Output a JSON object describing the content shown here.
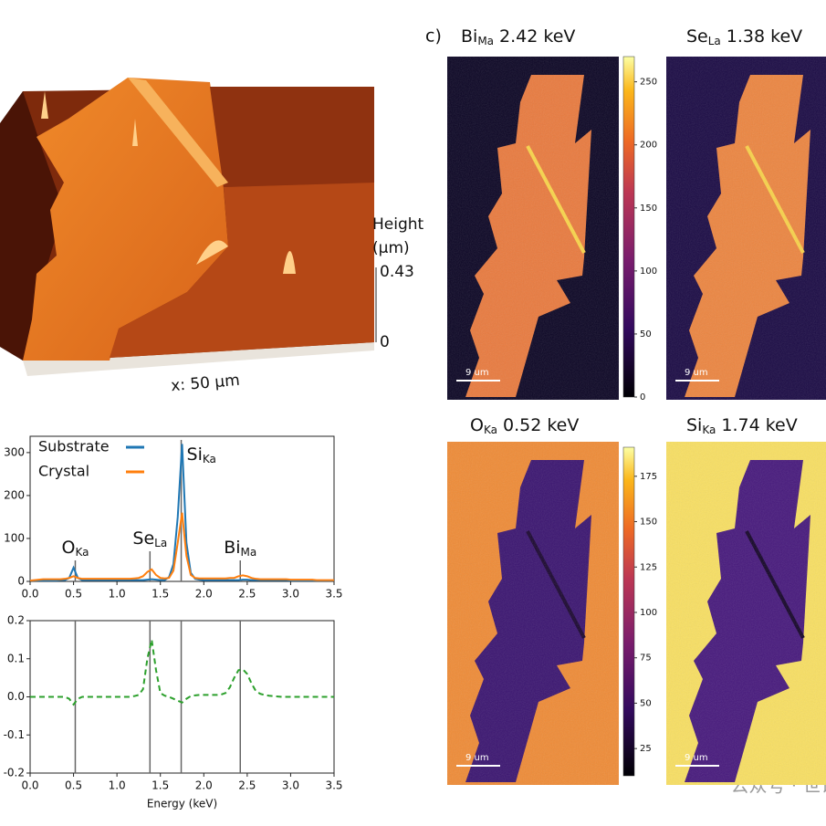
{
  "afm": {
    "height_label": "Height",
    "height_unit": "(μm)",
    "zticks": [
      0.43,
      0
    ],
    "x_label": "x: 50 μm"
  },
  "maps": {
    "panel_label": "c)",
    "panels": [
      {
        "element": "Bi",
        "line": "Ma",
        "energy": "2.42 keV",
        "scale_bar": "9 um"
      },
      {
        "element": "Se",
        "line": "La",
        "energy": "1.38 keV",
        "scale_bar": "9 um"
      },
      {
        "element": "O",
        "line": "Ka",
        "energy": "0.52 keV",
        "scale_bar": "9 um"
      },
      {
        "element": "Si",
        "line": "Ka",
        "energy": "1.74 keV",
        "scale_bar": "9 um"
      }
    ],
    "colorbars": [
      {
        "lim": [
          0,
          270
        ],
        "ticks": [
          0,
          50,
          100,
          150,
          200,
          250
        ]
      },
      {
        "lim": [
          10,
          191
        ],
        "ticks": [
          25,
          50,
          75,
          100,
          125,
          150,
          175
        ]
      }
    ]
  },
  "watermark": "公众号 · 世说新",
  "chart_data": [
    {
      "type": "line",
      "legend": "upper left",
      "x": [
        0,
        0.05,
        0.1,
        0.15,
        0.2,
        0.25,
        0.3,
        0.35,
        0.4,
        0.45,
        0.5,
        0.55,
        0.6,
        0.65,
        0.7,
        0.75,
        0.8,
        0.85,
        0.9,
        0.95,
        1,
        1.05,
        1.1,
        1.15,
        1.2,
        1.25,
        1.3,
        1.35,
        1.4,
        1.45,
        1.5,
        1.55,
        1.6,
        1.65,
        1.7,
        1.75,
        1.8,
        1.85,
        1.9,
        1.95,
        2,
        2.05,
        2.1,
        2.15,
        2.2,
        2.25,
        2.3,
        2.35,
        2.4,
        2.45,
        2.5,
        2.55,
        2.6,
        2.65,
        2.7,
        2.75,
        2.8,
        2.85,
        2.9,
        2.95,
        3,
        3.05,
        3.1,
        3.15,
        3.2,
        3.25,
        3.3,
        3.35,
        3.4,
        3.45,
        3.5
      ],
      "series": [
        {
          "name": "Substrate",
          "color": "#1f77b4",
          "values": [
            2,
            2,
            2,
            2,
            2,
            2,
            2,
            3,
            3,
            8,
            32,
            8,
            3,
            3,
            3,
            3,
            3,
            3,
            3,
            3,
            3,
            3,
            3,
            3,
            3,
            3,
            3,
            4,
            5,
            4,
            3,
            3,
            10,
            40,
            150,
            320,
            90,
            20,
            6,
            4,
            3,
            3,
            3,
            3,
            3,
            3,
            3,
            3,
            3,
            4,
            4,
            3,
            3,
            3,
            3,
            3,
            3,
            3,
            3,
            3,
            2,
            2,
            2,
            2,
            2,
            2,
            2,
            2,
            2,
            2,
            2
          ]
        },
        {
          "name": "Crystal",
          "color": "#ff7f0e",
          "values": [
            2,
            3,
            4,
            5,
            5,
            5,
            5,
            5,
            6,
            8,
            12,
            8,
            6,
            6,
            6,
            6,
            6,
            6,
            6,
            6,
            6,
            6,
            6,
            6,
            7,
            8,
            12,
            22,
            28,
            15,
            8,
            7,
            8,
            25,
            90,
            160,
            60,
            15,
            8,
            7,
            7,
            7,
            7,
            7,
            7,
            7,
            8,
            8,
            12,
            14,
            12,
            8,
            6,
            5,
            5,
            5,
            5,
            5,
            5,
            5,
            4,
            4,
            4,
            4,
            4,
            4,
            3,
            3,
            3,
            3,
            3
          ]
        }
      ],
      "xlim": [
        0,
        3.5
      ],
      "xticks": [
        {
          "value": 0,
          "label": "0.0"
        },
        {
          "value": 0.5,
          "label": "0.5"
        },
        {
          "value": 1,
          "label": "1.0"
        },
        {
          "value": 1.5,
          "label": "1.5"
        },
        {
          "value": 2,
          "label": "2.0"
        },
        {
          "value": 2.5,
          "label": "2.5"
        },
        {
          "value": 3,
          "label": "3.0"
        },
        {
          "value": 3.5,
          "label": "3.5"
        }
      ],
      "ylim": [
        0,
        338
      ],
      "yticks": [
        0,
        100,
        200,
        300
      ],
      "vlines": [
        0.52,
        1.38,
        1.74,
        2.42
      ],
      "annotations": [
        {
          "text": "O",
          "sub": "Ka"
        },
        {
          "text": "Se",
          "sub": "La"
        },
        {
          "text": "Si",
          "sub": "Ka"
        },
        {
          "text": "Bi",
          "sub": "Ma"
        }
      ]
    },
    {
      "type": "line",
      "xlabel": "Energy (keV)",
      "x": [
        0,
        0.05,
        0.1,
        0.15,
        0.2,
        0.25,
        0.3,
        0.35,
        0.4,
        0.45,
        0.5,
        0.55,
        0.6,
        0.65,
        0.7,
        0.75,
        0.8,
        0.85,
        0.9,
        0.95,
        1,
        1.05,
        1.1,
        1.15,
        1.2,
        1.25,
        1.3,
        1.35,
        1.4,
        1.45,
        1.5,
        1.55,
        1.6,
        1.65,
        1.7,
        1.75,
        1.8,
        1.85,
        1.9,
        1.95,
        2,
        2.05,
        2.1,
        2.15,
        2.2,
        2.25,
        2.3,
        2.35,
        2.4,
        2.45,
        2.5,
        2.55,
        2.6,
        2.65,
        2.7,
        2.75,
        2.8,
        2.85,
        2.9,
        2.95,
        3,
        3.05,
        3.1,
        3.15,
        3.2,
        3.25,
        3.3,
        3.35,
        3.4,
        3.45,
        3.5
      ],
      "series": [
        {
          "color": "#2ca02c",
          "linestyle": "dashed",
          "values": [
            0,
            0,
            0,
            0,
            0,
            0,
            0,
            0,
            0,
            -0.005,
            -0.02,
            -0.005,
            0,
            0,
            0,
            0,
            0,
            0,
            0,
            0,
            0,
            0,
            0,
            0,
            0.002,
            0.005,
            0.02,
            0.1,
            0.15,
            0.07,
            0.01,
            0.003,
            0,
            -0.005,
            -0.01,
            -0.015,
            -0.005,
            0.002,
            0.004,
            0.005,
            0.005,
            0.005,
            0.005,
            0.005,
            0.006,
            0.01,
            0.025,
            0.05,
            0.07,
            0.072,
            0.06,
            0.035,
            0.015,
            0.008,
            0.005,
            0.003,
            0.002,
            0.001,
            0,
            0,
            0,
            0,
            0,
            0,
            0,
            0,
            0,
            0,
            0,
            0,
            0
          ]
        }
      ],
      "xlim": [
        0,
        3.5
      ],
      "xticks": [
        {
          "value": 0,
          "label": "0.0"
        },
        {
          "value": 0.5,
          "label": "0.5"
        },
        {
          "value": 1,
          "label": "1.0"
        },
        {
          "value": 1.5,
          "label": "1.5"
        },
        {
          "value": 2,
          "label": "2.0"
        },
        {
          "value": 2.5,
          "label": "2.5"
        },
        {
          "value": 3,
          "label": "3.0"
        },
        {
          "value": 3.5,
          "label": "3.5"
        }
      ],
      "ylim": [
        -0.2,
        0.2
      ],
      "yticks": [
        {
          "value": -0.2,
          "label": "-0.2"
        },
        {
          "value": -0.1,
          "label": "-0.1"
        },
        {
          "value": 0,
          "label": "0.0"
        },
        0.1,
        0.2
      ],
      "vlines": [
        0.52,
        1.38,
        1.74,
        2.42
      ]
    }
  ]
}
